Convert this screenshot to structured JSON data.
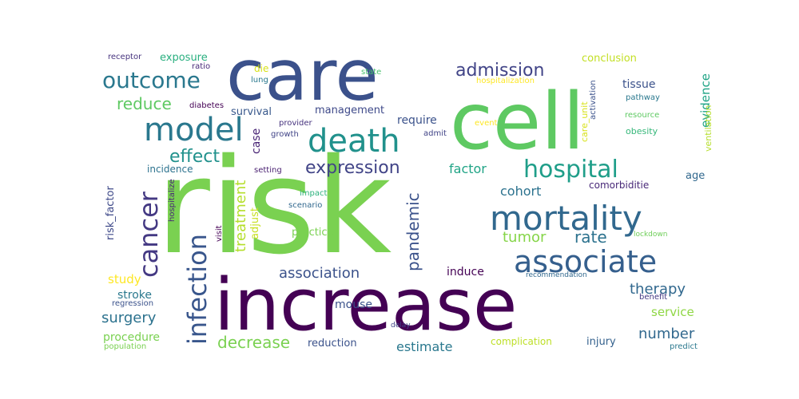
{
  "wordcloud": {
    "words": [
      {
        "text": "risk",
        "color": "#7ad151"
      },
      {
        "text": "care",
        "color": "#3b518b"
      },
      {
        "text": "cell",
        "color": "#5ec962"
      },
      {
        "text": "increase",
        "color": "#440154"
      },
      {
        "text": "mortality",
        "color": "#31688e"
      },
      {
        "text": "associate",
        "color": "#355f8d"
      },
      {
        "text": "death",
        "color": "#21918c"
      },
      {
        "text": "model",
        "color": "#2a788e"
      },
      {
        "text": "hospital",
        "color": "#1f9e89"
      },
      {
        "text": "outcome",
        "color": "#2a788e"
      },
      {
        "text": "infection",
        "color": "#39568c"
      },
      {
        "text": "cancer",
        "color": "#443983"
      },
      {
        "text": "expression",
        "color": "#414487"
      },
      {
        "text": "admission",
        "color": "#414487"
      },
      {
        "text": "effect",
        "color": "#21918c"
      },
      {
        "text": "reduce",
        "color": "#5ec962"
      },
      {
        "text": "treatment",
        "color": "#b5de2b"
      },
      {
        "text": "pandemic",
        "color": "#3b528b"
      },
      {
        "text": "association",
        "color": "#3b528b"
      },
      {
        "text": "rate",
        "color": "#2c728e"
      },
      {
        "text": "decrease",
        "color": "#7ad151"
      },
      {
        "text": "number",
        "color": "#31688e"
      },
      {
        "text": "tumor",
        "color": "#86d549"
      },
      {
        "text": "factor",
        "color": "#20a486"
      },
      {
        "text": "cohort",
        "color": "#2c728e"
      },
      {
        "text": "therapy",
        "color": "#31688e"
      },
      {
        "text": "surgery",
        "color": "#2c728e"
      },
      {
        "text": "estimate",
        "color": "#2a788e"
      },
      {
        "text": "study",
        "color": "#fde725"
      },
      {
        "text": "stroke",
        "color": "#2a788e"
      },
      {
        "text": "service",
        "color": "#8fd744"
      },
      {
        "text": "management",
        "color": "#3e4989"
      },
      {
        "text": "survival",
        "color": "#38588c"
      },
      {
        "text": "require",
        "color": "#3b528b"
      },
      {
        "text": "evidence",
        "color": "#20a486"
      },
      {
        "text": "tissue",
        "color": "#3b528b"
      },
      {
        "text": "conclusion",
        "color": "#c2df23"
      },
      {
        "text": "exposure",
        "color": "#29af7f"
      },
      {
        "text": "case",
        "color": "#482475"
      },
      {
        "text": "procedure",
        "color": "#7ad151"
      },
      {
        "text": "reduction",
        "color": "#3b528b"
      },
      {
        "text": "complication",
        "color": "#bddf26"
      },
      {
        "text": "injury",
        "color": "#34618d"
      },
      {
        "text": "mouse",
        "color": "#3b528b"
      },
      {
        "text": "practice",
        "color": "#7ad151"
      },
      {
        "text": "induce",
        "color": "#440154"
      },
      {
        "text": "risk_factor",
        "color": "#3e4989"
      },
      {
        "text": "incidence",
        "color": "#2c728e"
      },
      {
        "text": "adjust",
        "color": "#c8e020"
      },
      {
        "text": "ventilation",
        "color": "#b5de2b"
      },
      {
        "text": "comorbiditie",
        "color": "#482878"
      },
      {
        "text": "age",
        "color": "#31688e"
      },
      {
        "text": "care_unit",
        "color": "#d8e219"
      },
      {
        "text": "diabetes",
        "color": "#440154"
      },
      {
        "text": "receptor",
        "color": "#46337e"
      },
      {
        "text": "ratio",
        "color": "#482878"
      },
      {
        "text": "die",
        "color": "#d8e219"
      },
      {
        "text": "lung",
        "color": "#2a788e"
      },
      {
        "text": "state",
        "color": "#4ac16d"
      },
      {
        "text": "hospitalization",
        "color": "#fde725"
      },
      {
        "text": "pathway",
        "color": "#2a788e"
      },
      {
        "text": "resource",
        "color": "#5ec962"
      },
      {
        "text": "obesity",
        "color": "#35b779"
      },
      {
        "text": "activation",
        "color": "#3b528b"
      },
      {
        "text": "event",
        "color": "#fde725"
      },
      {
        "text": "admit",
        "color": "#414487"
      },
      {
        "text": "provider",
        "color": "#46337e"
      },
      {
        "text": "growth",
        "color": "#414487"
      },
      {
        "text": "setting",
        "color": "#481f70"
      },
      {
        "text": "impact",
        "color": "#2db27d"
      },
      {
        "text": "scenario",
        "color": "#31688e"
      },
      {
        "text": "hospitalize",
        "color": "#482878"
      },
      {
        "text": "visit",
        "color": "#440154"
      },
      {
        "text": "lockdown",
        "color": "#6ece58"
      },
      {
        "text": "recommendation",
        "color": "#31688e"
      },
      {
        "text": "regression",
        "color": "#3b528b"
      },
      {
        "text": "benefit",
        "color": "#443983"
      },
      {
        "text": "delay",
        "color": "#414487"
      },
      {
        "text": "population",
        "color": "#7ad151"
      },
      {
        "text": "predict",
        "color": "#2a788e"
      }
    ]
  }
}
